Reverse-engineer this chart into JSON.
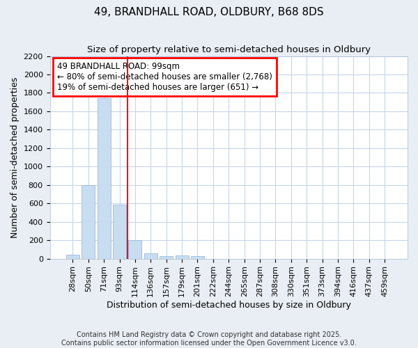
{
  "title": "49, BRANDHALL ROAD, OLDBURY, B68 8DS",
  "subtitle": "Size of property relative to semi-detached houses in Oldbury",
  "xlabel": "Distribution of semi-detached houses by size in Oldbury",
  "ylabel": "Number of semi-detached properties",
  "categories": [
    "28sqm",
    "50sqm",
    "71sqm",
    "93sqm",
    "114sqm",
    "136sqm",
    "157sqm",
    "179sqm",
    "201sqm",
    "222sqm",
    "244sqm",
    "265sqm",
    "287sqm",
    "308sqm",
    "330sqm",
    "351sqm",
    "373sqm",
    "394sqm",
    "416sqm",
    "437sqm",
    "459sqm"
  ],
  "values": [
    40,
    800,
    1740,
    590,
    200,
    60,
    30,
    35,
    25,
    0,
    0,
    0,
    0,
    0,
    0,
    0,
    0,
    0,
    0,
    0,
    0
  ],
  "bar_color": "#c8ddf0",
  "bar_edge_color": "#99bbdd",
  "annotation_title": "49 BRANDHALL ROAD: 99sqm",
  "annotation_line1": "← 80% of semi-detached houses are smaller (2,768)",
  "annotation_line2": "19% of semi-detached houses are larger (651) →",
  "vline_index": 3.5,
  "ylim": [
    0,
    2200
  ],
  "yticks": [
    0,
    200,
    400,
    600,
    800,
    1000,
    1200,
    1400,
    1600,
    1800,
    2000,
    2200
  ],
  "footer_line1": "Contains HM Land Registry data © Crown copyright and database right 2025.",
  "footer_line2": "Contains public sector information licensed under the Open Government Licence v3.0.",
  "bg_color": "#e8eef4",
  "plot_bg_color": "#ffffff",
  "grid_color": "#c5d5e8",
  "title_fontsize": 11,
  "subtitle_fontsize": 9.5,
  "axis_label_fontsize": 9,
  "tick_fontsize": 8,
  "annotation_fontsize": 8.5,
  "footer_fontsize": 7
}
